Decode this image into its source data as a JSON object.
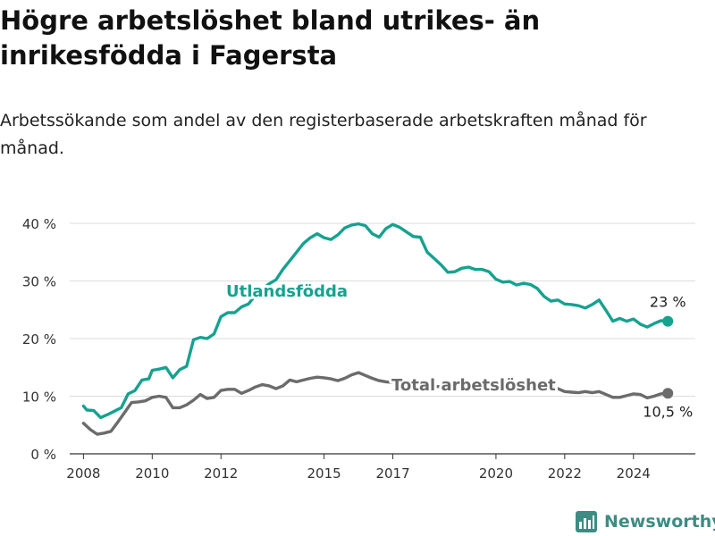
{
  "title": "Högre arbetslöshet bland utrikes- än inrikesfödda i Fagersta",
  "subtitle": "Arbetssökande som andel av den registerbaserade arbetskraften månad för månad.",
  "brand": "Newsworthy",
  "colors": {
    "utlandsfodda": "#15a28f",
    "total": "#6b6b6b",
    "grid": "#dcdcdc",
    "axis": "#333333",
    "brand": "#3d8c84"
  },
  "chart_data": {
    "type": "line",
    "xlim": [
      2007.6,
      2025.8
    ],
    "ylim": [
      0,
      40
    ],
    "grid": true,
    "y_ticks": [
      {
        "value": 0,
        "label": "0 %"
      },
      {
        "value": 10,
        "label": "10 %"
      },
      {
        "value": 20,
        "label": "20 %"
      },
      {
        "value": 30,
        "label": "30 %"
      },
      {
        "value": 40,
        "label": "40 %"
      }
    ],
    "x_ticks": [
      {
        "value": 2008,
        "label": "2008"
      },
      {
        "value": 2010,
        "label": "2010"
      },
      {
        "value": 2012,
        "label": "2012"
      },
      {
        "value": 2015,
        "label": "2015"
      },
      {
        "value": 2017,
        "label": "2017"
      },
      {
        "value": 2020,
        "label": "2020"
      },
      {
        "value": 2022,
        "label": "2022"
      },
      {
        "value": 2024,
        "label": "2024"
      }
    ],
    "series": [
      {
        "name": "Utlandsfödda",
        "color": "#15a28f",
        "end_label": "23 %",
        "points": [
          [
            2008.0,
            8.3
          ],
          [
            2008.1,
            7.6
          ],
          [
            2008.3,
            7.5
          ],
          [
            2008.5,
            6.3
          ],
          [
            2008.7,
            6.8
          ],
          [
            2008.9,
            7.4
          ],
          [
            2009.1,
            8.0
          ],
          [
            2009.3,
            10.4
          ],
          [
            2009.5,
            11.0
          ],
          [
            2009.7,
            12.8
          ],
          [
            2009.9,
            13.0
          ],
          [
            2010.0,
            14.5
          ],
          [
            2010.2,
            14.7
          ],
          [
            2010.4,
            15.0
          ],
          [
            2010.6,
            13.2
          ],
          [
            2010.8,
            14.6
          ],
          [
            2011.0,
            15.2
          ],
          [
            2011.2,
            19.8
          ],
          [
            2011.4,
            20.2
          ],
          [
            2011.6,
            20.0
          ],
          [
            2011.8,
            20.8
          ],
          [
            2012.0,
            23.8
          ],
          [
            2012.2,
            24.5
          ],
          [
            2012.4,
            24.5
          ],
          [
            2012.6,
            25.5
          ],
          [
            2012.8,
            26.0
          ],
          [
            2013.0,
            27.5
          ],
          [
            2013.2,
            28.5
          ],
          [
            2013.4,
            29.5
          ],
          [
            2013.6,
            30.2
          ],
          [
            2013.8,
            32.0
          ],
          [
            2014.0,
            33.5
          ],
          [
            2014.2,
            35.0
          ],
          [
            2014.4,
            36.5
          ],
          [
            2014.6,
            37.5
          ],
          [
            2014.8,
            38.2
          ],
          [
            2015.0,
            37.5
          ],
          [
            2015.2,
            37.2
          ],
          [
            2015.4,
            38.0
          ],
          [
            2015.6,
            39.2
          ],
          [
            2015.8,
            39.7
          ],
          [
            2016.0,
            39.9
          ],
          [
            2016.2,
            39.6
          ],
          [
            2016.4,
            38.2
          ],
          [
            2016.6,
            37.6
          ],
          [
            2016.8,
            39.1
          ],
          [
            2017.0,
            39.8
          ],
          [
            2017.2,
            39.3
          ],
          [
            2017.4,
            38.5
          ],
          [
            2017.6,
            37.7
          ],
          [
            2017.8,
            37.6
          ],
          [
            2018.0,
            35.0
          ],
          [
            2018.2,
            33.9
          ],
          [
            2018.4,
            32.8
          ],
          [
            2018.6,
            31.5
          ],
          [
            2018.8,
            31.6
          ],
          [
            2019.0,
            32.2
          ],
          [
            2019.2,
            32.4
          ],
          [
            2019.4,
            32.0
          ],
          [
            2019.6,
            32.0
          ],
          [
            2019.8,
            31.6
          ],
          [
            2020.0,
            30.3
          ],
          [
            2020.2,
            29.8
          ],
          [
            2020.4,
            29.9
          ],
          [
            2020.6,
            29.3
          ],
          [
            2020.8,
            29.6
          ],
          [
            2021.0,
            29.4
          ],
          [
            2021.2,
            28.7
          ],
          [
            2021.4,
            27.3
          ],
          [
            2021.6,
            26.5
          ],
          [
            2021.8,
            26.7
          ],
          [
            2022.0,
            26.0
          ],
          [
            2022.2,
            25.9
          ],
          [
            2022.4,
            25.7
          ],
          [
            2022.6,
            25.3
          ],
          [
            2022.8,
            25.9
          ],
          [
            2023.0,
            26.7
          ],
          [
            2023.2,
            24.9
          ],
          [
            2023.4,
            23.0
          ],
          [
            2023.6,
            23.5
          ],
          [
            2023.8,
            23.0
          ],
          [
            2024.0,
            23.4
          ],
          [
            2024.2,
            22.5
          ],
          [
            2024.4,
            22.0
          ],
          [
            2024.6,
            22.6
          ],
          [
            2024.8,
            23.1
          ],
          [
            2025.0,
            23.0
          ]
        ]
      },
      {
        "name": "Total arbetslöshet",
        "color": "#6b6b6b",
        "end_label": "10,5 %",
        "points": [
          [
            2008.0,
            5.3
          ],
          [
            2008.2,
            4.2
          ],
          [
            2008.4,
            3.4
          ],
          [
            2008.6,
            3.6
          ],
          [
            2008.8,
            3.9
          ],
          [
            2009.0,
            5.5
          ],
          [
            2009.2,
            7.2
          ],
          [
            2009.4,
            8.9
          ],
          [
            2009.6,
            9.0
          ],
          [
            2009.8,
            9.2
          ],
          [
            2010.0,
            9.8
          ],
          [
            2010.2,
            10.0
          ],
          [
            2010.4,
            9.8
          ],
          [
            2010.6,
            8.0
          ],
          [
            2010.8,
            8.0
          ],
          [
            2011.0,
            8.5
          ],
          [
            2011.2,
            9.3
          ],
          [
            2011.4,
            10.3
          ],
          [
            2011.6,
            9.6
          ],
          [
            2011.8,
            9.8
          ],
          [
            2012.0,
            11.0
          ],
          [
            2012.2,
            11.2
          ],
          [
            2012.4,
            11.2
          ],
          [
            2012.6,
            10.5
          ],
          [
            2012.8,
            11.0
          ],
          [
            2013.0,
            11.6
          ],
          [
            2013.2,
            12.0
          ],
          [
            2013.4,
            11.8
          ],
          [
            2013.6,
            11.3
          ],
          [
            2013.8,
            11.8
          ],
          [
            2014.0,
            12.8
          ],
          [
            2014.2,
            12.5
          ],
          [
            2014.4,
            12.8
          ],
          [
            2014.6,
            13.1
          ],
          [
            2014.8,
            13.3
          ],
          [
            2015.0,
            13.2
          ],
          [
            2015.2,
            13.0
          ],
          [
            2015.4,
            12.7
          ],
          [
            2015.6,
            13.1
          ],
          [
            2015.8,
            13.7
          ],
          [
            2016.0,
            14.1
          ],
          [
            2016.2,
            13.6
          ],
          [
            2016.4,
            13.1
          ],
          [
            2016.6,
            12.7
          ],
          [
            2016.8,
            12.5
          ],
          [
            2017.0,
            12.4
          ],
          [
            2017.2,
            12.3
          ],
          [
            2017.4,
            12.1
          ],
          [
            2017.6,
            12.0
          ],
          [
            2017.8,
            11.9
          ],
          [
            2018.0,
            11.8
          ],
          [
            2018.5,
            11.6
          ],
          [
            2019.0,
            11.5
          ],
          [
            2019.5,
            11.4
          ],
          [
            2020.0,
            11.3
          ],
          [
            2020.5,
            11.4
          ],
          [
            2021.0,
            11.2
          ],
          [
            2021.5,
            11.1
          ],
          [
            2021.8,
            11.3
          ],
          [
            2022.0,
            10.8
          ],
          [
            2022.2,
            10.7
          ],
          [
            2022.4,
            10.6
          ],
          [
            2022.6,
            10.8
          ],
          [
            2022.8,
            10.6
          ],
          [
            2023.0,
            10.8
          ],
          [
            2023.2,
            10.3
          ],
          [
            2023.4,
            9.8
          ],
          [
            2023.6,
            9.8
          ],
          [
            2023.8,
            10.1
          ],
          [
            2024.0,
            10.4
          ],
          [
            2024.2,
            10.3
          ],
          [
            2024.4,
            9.7
          ],
          [
            2024.6,
            10.0
          ],
          [
            2024.8,
            10.4
          ],
          [
            2025.0,
            10.5
          ]
        ]
      }
    ]
  }
}
